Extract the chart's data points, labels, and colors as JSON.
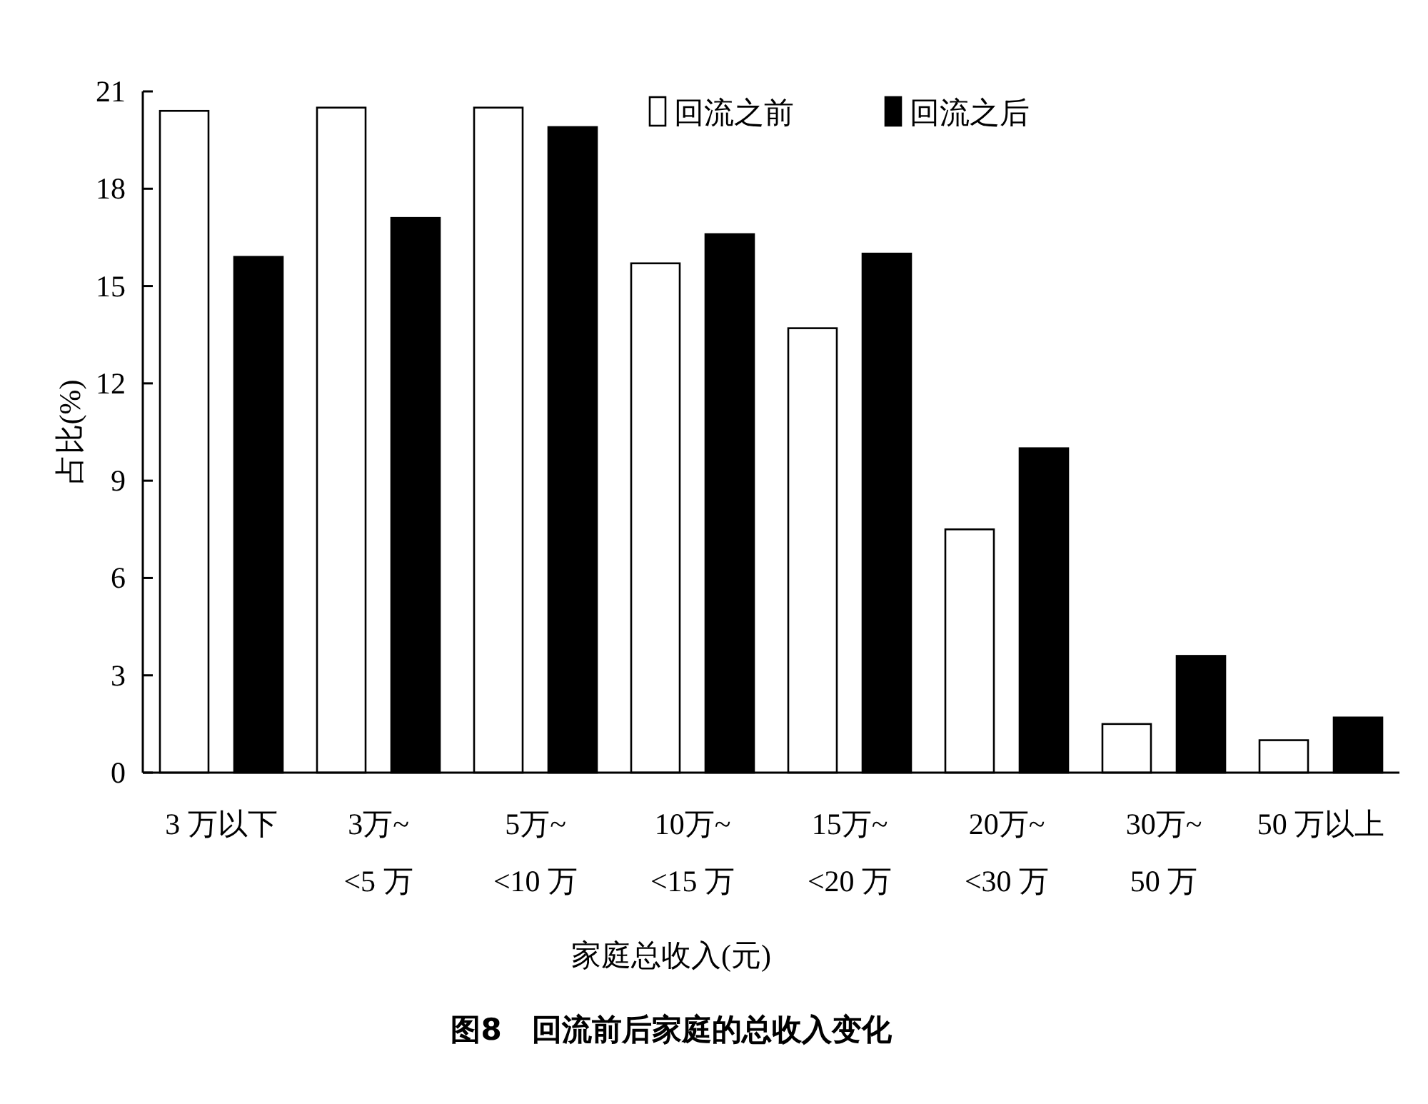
{
  "chart_data": {
    "type": "bar",
    "title": "图8　回流前后家庭的总收入变化",
    "xlabel": "家庭总收入(元)",
    "ylabel": "占比(%)",
    "categories": [
      "3 万以下",
      "3万~\n<5 万",
      "5万~\n<10 万",
      "10万~\n<15 万",
      "15万~\n<20 万",
      "20万~\n<30 万",
      "30万~\n50 万",
      "50 万以上"
    ],
    "series": [
      {
        "name": "回流之前",
        "color": "#ffffff",
        "values": [
          20.4,
          20.5,
          20.5,
          15.7,
          13.7,
          7.5,
          1.5,
          1.0
        ]
      },
      {
        "name": "回流之后",
        "color": "#000000",
        "values": [
          15.9,
          17.1,
          19.9,
          16.6,
          16.0,
          10.0,
          3.6,
          1.7
        ]
      }
    ],
    "ylim": [
      0,
      21
    ],
    "yticks": [
      0,
      3,
      6,
      9,
      12,
      15,
      18,
      21
    ],
    "legend": "top right",
    "grid": false
  }
}
